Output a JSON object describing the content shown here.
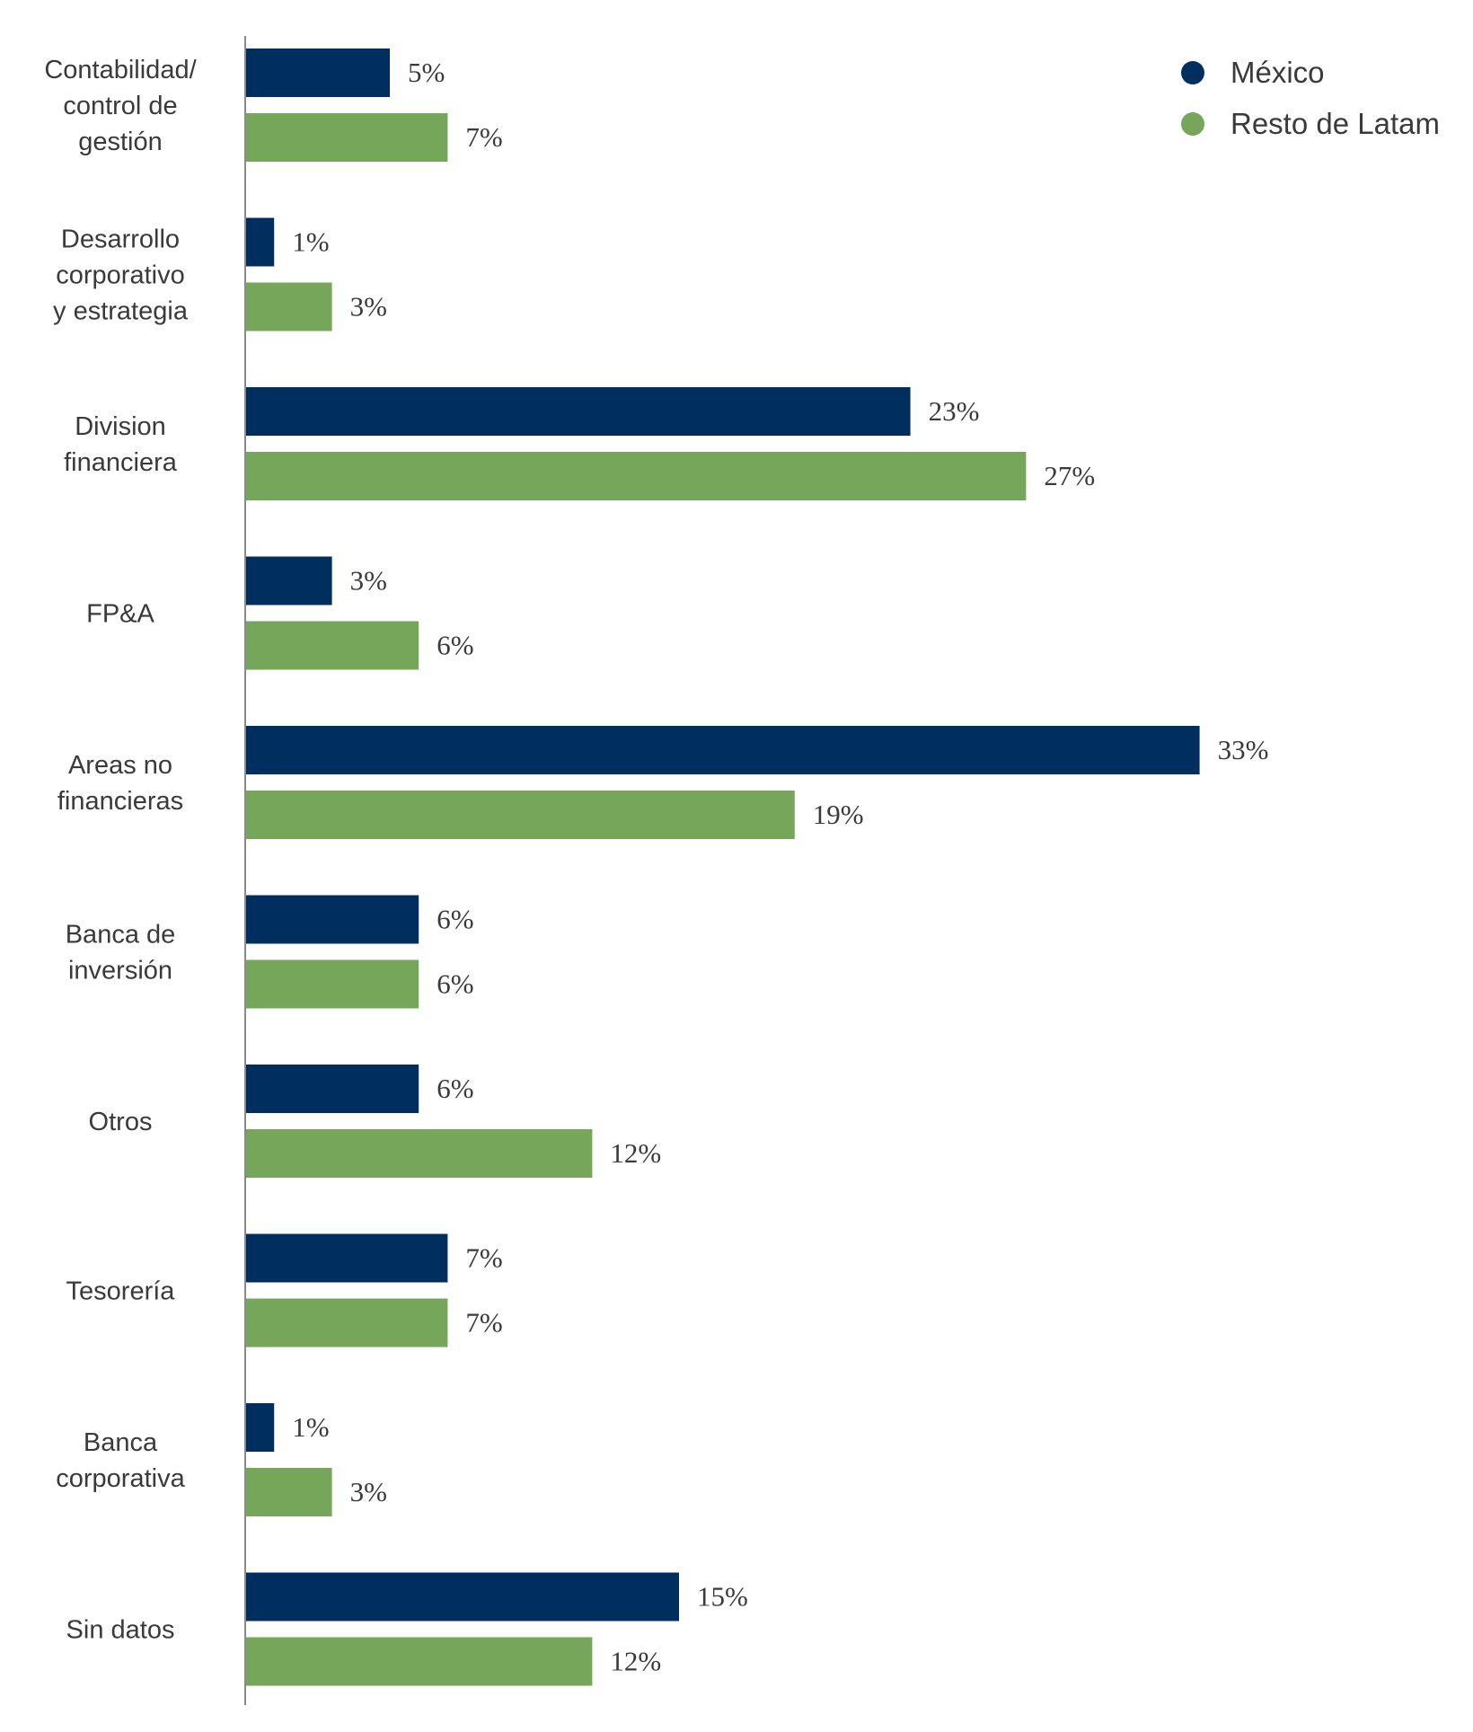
{
  "chart_data": {
    "type": "bar",
    "orientation": "horizontal",
    "title": "",
    "xlabel": "",
    "ylabel": "",
    "xlim": [
      0,
      33
    ],
    "grid": false,
    "legend_position": "top-right",
    "categories": [
      [
        "Contabilidad/",
        "control de",
        "gestión"
      ],
      [
        "Desarrollo",
        "corporativo",
        "y estrategia"
      ],
      [
        "Division",
        "financiera"
      ],
      [
        "FP&A"
      ],
      [
        "Areas no",
        "financieras"
      ],
      [
        "Banca de",
        "inversión"
      ],
      [
        "Otros"
      ],
      [
        "Tesorería"
      ],
      [
        "Banca",
        "corporativa"
      ],
      [
        "Sin datos"
      ]
    ],
    "series": [
      {
        "name": "México",
        "color": "#002f5f",
        "values": [
          5,
          1,
          23,
          3,
          33,
          6,
          6,
          7,
          1,
          15
        ],
        "labels": [
          "5%",
          "1%",
          "23%",
          "3%",
          "33%",
          "6%",
          "6%",
          "7%",
          "1%",
          "15%"
        ]
      },
      {
        "name": "Resto de Latam",
        "color": "#76a65a",
        "values": [
          7,
          3,
          27,
          6,
          19,
          6,
          12,
          7,
          3,
          12
        ],
        "labels": [
          "7%",
          "3%",
          "27%",
          "6%",
          "19%",
          "6%",
          "12%",
          "7%",
          "3%",
          "12%"
        ]
      }
    ]
  },
  "axis_color": "#8a8a8a"
}
